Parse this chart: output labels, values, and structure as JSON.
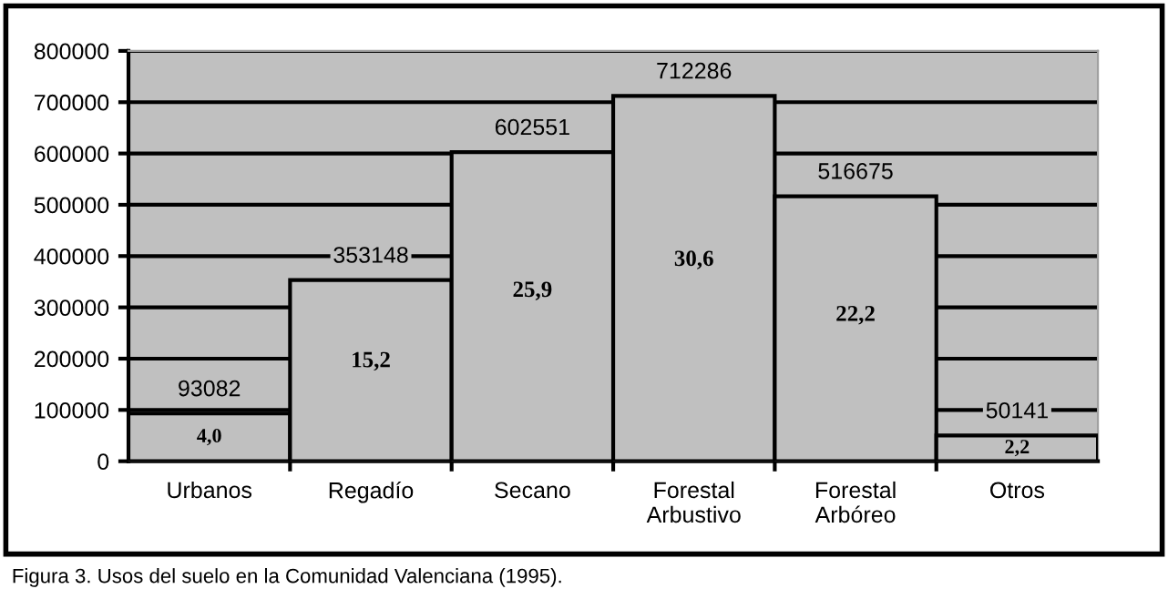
{
  "chart_data": {
    "type": "bar",
    "categories": [
      "Urbanos",
      "Regadío",
      "Secano",
      "Forestal\nArbustivo",
      "Forestal\nArbóreo",
      "Otros"
    ],
    "values": [
      93082,
      353148,
      602551,
      712286,
      516675,
      50141
    ],
    "color": "#c0c0c0",
    "ylim": [
      0,
      800000
    ],
    "yticks": [
      0,
      100000,
      200000,
      300000,
      400000,
      500000,
      600000,
      700000,
      800000
    ],
    "grid": "y",
    "data_labels": true,
    "annotations": [
      "4,0",
      "15,2",
      "25,9",
      "30,6",
      "22,2",
      "2,2",
      "Figura 3. Usos del suelo en la Comunidad Valenciana (1995)."
    ]
  }
}
